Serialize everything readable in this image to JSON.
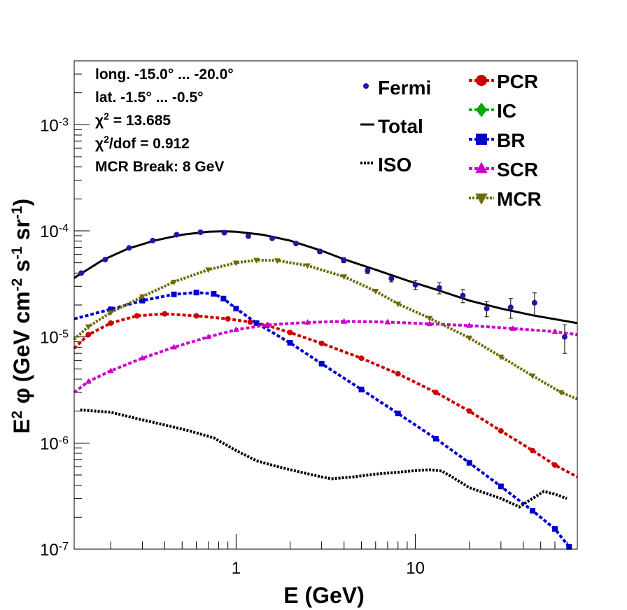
{
  "chart_data": {
    "type": "line",
    "title": "",
    "xlabel": "E (GeV)",
    "ylabel": "E^2 φ (GeV cm^-2 s^-1 sr^-1)",
    "ylabel_parts": {
      "e": "E",
      "e_sup": "2",
      "phi": "φ",
      "open": "(GeV cm",
      "m2": "-2",
      "s": " s",
      "m1a": "-1",
      "sr": " sr",
      "m1b": "-1",
      "close": ")"
    },
    "x_scale": "log",
    "y_scale": "log",
    "xlim": [
      0.125,
      80
    ],
    "ylim": [
      1e-07,
      0.004
    ],
    "x_ticks": [
      {
        "value": 1,
        "label": "1"
      },
      {
        "value": 10,
        "label": "10"
      }
    ],
    "y_ticks": [
      {
        "value": 1e-07,
        "base": "10",
        "exp": "-7"
      },
      {
        "value": 1e-06,
        "base": "10",
        "exp": "-6"
      },
      {
        "value": 1e-05,
        "base": "10",
        "exp": "-5"
      },
      {
        "value": 0.0001,
        "base": "10",
        "exp": "-4"
      },
      {
        "value": 0.001,
        "base": "10",
        "exp": "-3"
      }
    ],
    "info_lines": [
      {
        "text": "long. -15.0° ... -20.0°"
      },
      {
        "text": "lat. -1.5° ... -0.5°"
      },
      {
        "pre": "χ",
        "sup": "2",
        "post": " = 13.685"
      },
      {
        "pre": "χ",
        "sup": "2",
        "post": "/dof = 0.912"
      },
      {
        "text": "MCR Break:  8 GeV"
      }
    ],
    "fermi": {
      "name": "Fermi",
      "color": "#1a1aa8",
      "points": [
        {
          "x": 0.137,
          "y": 4e-05,
          "err": 1.5e-06
        },
        {
          "x": 0.186,
          "y": 5.35e-05,
          "err": 1.8e-06
        },
        {
          "x": 0.253,
          "y": 6.9e-05,
          "err": 2e-06
        },
        {
          "x": 0.343,
          "y": 8.1e-05,
          "err": 2.2e-06
        },
        {
          "x": 0.466,
          "y": 9.2e-05,
          "err": 2.5e-06
        },
        {
          "x": 0.633,
          "y": 9.7e-05,
          "err": 3e-06
        },
        {
          "x": 0.86,
          "y": 9.6e-05,
          "err": 3e-06
        },
        {
          "x": 1.17,
          "y": 8.9e-05,
          "err": 3e-06
        },
        {
          "x": 1.59,
          "y": 8.5e-05,
          "err": 3e-06
        },
        {
          "x": 2.16,
          "y": 7.6e-05,
          "err": 3e-06
        },
        {
          "x": 2.93,
          "y": 6.4e-05,
          "err": 3e-06
        },
        {
          "x": 3.98,
          "y": 5.3e-05,
          "err": 3e-06
        },
        {
          "x": 5.41,
          "y": 4.2e-05,
          "err": 2.5e-06
        },
        {
          "x": 7.35,
          "y": 3.55e-05,
          "err": 2.5e-06
        },
        {
          "x": 10.0,
          "y": 3.1e-05,
          "err": 3e-06
        },
        {
          "x": 13.6,
          "y": 2.9e-05,
          "err": 3.5e-06
        },
        {
          "x": 18.4,
          "y": 2.45e-05,
          "err": 3.5e-06
        },
        {
          "x": 25.0,
          "y": 1.85e-05,
          "err": 3e-06
        },
        {
          "x": 34.0,
          "y": 1.9e-05,
          "err": 4e-06
        },
        {
          "x": 46.2,
          "y": 2.1e-05,
          "err": 5e-06
        },
        {
          "x": 68.0,
          "y": 1e-05,
          "err": 3e-06
        }
      ]
    },
    "series": [
      {
        "name": "Total",
        "color": "#000000",
        "style": "solid",
        "marker": "none",
        "points": [
          [
            0.125,
            3.6e-05
          ],
          [
            0.18,
            5.3e-05
          ],
          [
            0.25,
            6.8e-05
          ],
          [
            0.35,
            8.1e-05
          ],
          [
            0.5,
            9.2e-05
          ],
          [
            0.7,
            9.8e-05
          ],
          [
            0.85,
            9.9e-05
          ],
          [
            1.0,
            9.8e-05
          ],
          [
            1.4,
            9.2e-05
          ],
          [
            2.0,
            8.1e-05
          ],
          [
            3.0,
            6.5e-05
          ],
          [
            4.0,
            5.4e-05
          ],
          [
            6.0,
            4.3e-05
          ],
          [
            9.0,
            3.4e-05
          ],
          [
            13.0,
            2.8e-05
          ],
          [
            20.0,
            2.2e-05
          ],
          [
            30.0,
            1.85e-05
          ],
          [
            45.0,
            1.6e-05
          ],
          [
            80.0,
            1.35e-05
          ]
        ]
      },
      {
        "name": "ISO",
        "color": "#000000",
        "style": "dotted",
        "marker": "none",
        "points": [
          [
            0.135,
            2.05e-06
          ],
          [
            0.2,
            1.95e-06
          ],
          [
            0.28,
            1.7e-06
          ],
          [
            0.4,
            1.48e-06
          ],
          [
            0.55,
            1.3e-06
          ],
          [
            0.75,
            1.12e-06
          ],
          [
            1.0,
            8.5e-07
          ],
          [
            1.3,
            6.8e-07
          ],
          [
            1.7,
            6e-07
          ],
          [
            2.3,
            5.3e-07
          ],
          [
            3.0,
            4.8e-07
          ],
          [
            3.4,
            4.6e-07
          ],
          [
            4.5,
            4.8e-07
          ],
          [
            6.0,
            5.1e-07
          ],
          [
            8.0,
            5.3e-07
          ],
          [
            10.0,
            5.5e-07
          ],
          [
            12.0,
            5.6e-07
          ],
          [
            14.0,
            5.45e-07
          ],
          [
            16.0,
            4.8e-07
          ],
          [
            20.0,
            3.8e-07
          ],
          [
            30.0,
            3e-07
          ],
          [
            38.0,
            2.5e-07
          ],
          [
            45.0,
            3e-07
          ],
          [
            52.0,
            3.5e-07
          ],
          [
            60.0,
            3.3e-07
          ],
          [
            70.0,
            3e-07
          ]
        ]
      },
      {
        "name": "PCR",
        "color": "#cc0000",
        "style": "dashed",
        "marker": "circle",
        "points": [
          [
            0.125,
            7.8e-06
          ],
          [
            0.15,
            1.05e-05
          ],
          [
            0.2,
            1.35e-05
          ],
          [
            0.28,
            1.58e-05
          ],
          [
            0.4,
            1.65e-05
          ],
          [
            0.6,
            1.58e-05
          ],
          [
            0.9,
            1.48e-05
          ],
          [
            1.2,
            1.38e-05
          ],
          [
            1.5,
            1.28e-05
          ],
          [
            2.0,
            1.1e-05
          ],
          [
            3.0,
            8.7e-06
          ],
          [
            5.0,
            6.3e-06
          ],
          [
            8.0,
            4.5e-06
          ],
          [
            13.0,
            3e-06
          ],
          [
            20.0,
            2e-06
          ],
          [
            30.0,
            1.3e-06
          ],
          [
            45.0,
            8.5e-07
          ],
          [
            60.0,
            6.2e-07
          ],
          [
            80.0,
            4.8e-07
          ]
        ]
      },
      {
        "name": "IC",
        "color": "#00aa00",
        "style": "dashed",
        "marker": "diamond",
        "points": []
      },
      {
        "name": "BR",
        "color": "#0000cc",
        "style": "dashed",
        "marker": "square",
        "points": [
          [
            0.125,
            1.48e-05
          ],
          [
            0.2,
            1.82e-05
          ],
          [
            0.3,
            2.2e-05
          ],
          [
            0.45,
            2.52e-05
          ],
          [
            0.6,
            2.62e-05
          ],
          [
            0.75,
            2.55e-05
          ],
          [
            0.85,
            2.3e-05
          ],
          [
            1.0,
            1.85e-05
          ],
          [
            1.3,
            1.35e-05
          ],
          [
            2.0,
            8.8e-06
          ],
          [
            3.0,
            5.6e-06
          ],
          [
            5.0,
            3.2e-06
          ],
          [
            8.0,
            1.9e-06
          ],
          [
            13.0,
            1.1e-06
          ],
          [
            20.0,
            6.5e-07
          ],
          [
            30.0,
            3.9e-07
          ],
          [
            45.0,
            2.3e-07
          ],
          [
            60.0,
            1.55e-07
          ],
          [
            72.0,
            1.05e-07
          ]
        ]
      },
      {
        "name": "SCR",
        "color": "#cc00cc",
        "style": "dashed",
        "marker": "triangle-up",
        "points": [
          [
            0.125,
            3e-06
          ],
          [
            0.15,
            3.8e-06
          ],
          [
            0.2,
            4.8e-06
          ],
          [
            0.3,
            6.3e-06
          ],
          [
            0.45,
            8e-06
          ],
          [
            0.7,
            1e-05
          ],
          [
            1.0,
            1.17e-05
          ],
          [
            1.5,
            1.3e-05
          ],
          [
            2.5,
            1.37e-05
          ],
          [
            4.0,
            1.4e-05
          ],
          [
            7.0,
            1.38e-05
          ],
          [
            12.0,
            1.33e-05
          ],
          [
            20.0,
            1.28e-05
          ],
          [
            35.0,
            1.2e-05
          ],
          [
            60.0,
            1.12e-05
          ],
          [
            80.0,
            1.05e-05
          ]
        ]
      },
      {
        "name": "MCR",
        "color": "#6b6b00",
        "style": "dotted",
        "marker": "triangle-down",
        "points": [
          [
            0.125,
            9.5e-06
          ],
          [
            0.15,
            1.25e-05
          ],
          [
            0.2,
            1.7e-05
          ],
          [
            0.3,
            2.4e-05
          ],
          [
            0.45,
            3.3e-05
          ],
          [
            0.7,
            4.3e-05
          ],
          [
            1.0,
            5e-05
          ],
          [
            1.3,
            5.3e-05
          ],
          [
            1.7,
            5.25e-05
          ],
          [
            2.5,
            4.7e-05
          ],
          [
            4.0,
            3.7e-05
          ],
          [
            6.0,
            2.7e-05
          ],
          [
            8.0,
            2.05e-05
          ],
          [
            12.0,
            1.5e-05
          ],
          [
            20.0,
            9.8e-06
          ],
          [
            30.0,
            6.5e-06
          ],
          [
            45.0,
            4.3e-06
          ],
          [
            65.0,
            3e-06
          ],
          [
            80.0,
            2.6e-06
          ]
        ]
      }
    ],
    "legend_left": [
      "Fermi",
      "Total",
      "ISO"
    ],
    "legend_right": [
      "PCR",
      "IC",
      "BR",
      "SCR",
      "MCR"
    ]
  }
}
